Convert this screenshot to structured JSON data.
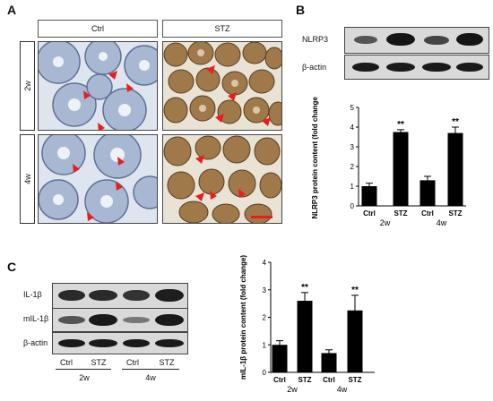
{
  "panelA": {
    "letter": "A",
    "columns": [
      "Ctrl",
      "STZ"
    ],
    "rows": [
      "2w",
      "4w"
    ]
  },
  "panelB": {
    "letter": "B",
    "blot_labels": [
      "NLRP3",
      "β-actin"
    ],
    "chart_data": {
      "type": "bar",
      "categories": [
        "Ctrl",
        "STZ",
        "Ctrl",
        "STZ"
      ],
      "groups": [
        "2w",
        "4w"
      ],
      "values": [
        1.0,
        3.75,
        1.3,
        3.7
      ],
      "errors": [
        0.15,
        0.12,
        0.2,
        0.3
      ],
      "significance": [
        "",
        "**",
        "",
        "**"
      ],
      "ylabel": "NLRP3 protein content (fold change)",
      "ylim": [
        0,
        5
      ],
      "yticks": [
        0,
        1,
        2,
        3,
        4,
        5
      ]
    }
  },
  "panelC": {
    "letter": "C",
    "blot_labels": [
      "IL-1β",
      "mIL-1β",
      "β-actin"
    ],
    "lane_labels": [
      "Ctrl",
      "STZ",
      "Ctrl",
      "STZ"
    ],
    "group_labels": [
      "2w",
      "4w"
    ],
    "chart_data": {
      "type": "bar",
      "categories": [
        "Ctrl",
        "STZ",
        "Ctrl",
        "STZ"
      ],
      "groups": [
        "2w",
        "4w"
      ],
      "values": [
        1.0,
        2.6,
        0.7,
        2.25
      ],
      "errors": [
        0.15,
        0.3,
        0.12,
        0.55
      ],
      "significance": [
        "",
        "**",
        "",
        "**"
      ],
      "ylabel": "mIL-1β protein content (fold change)",
      "ylim": [
        0,
        4
      ],
      "yticks": [
        0,
        1,
        2,
        3,
        4
      ]
    }
  }
}
